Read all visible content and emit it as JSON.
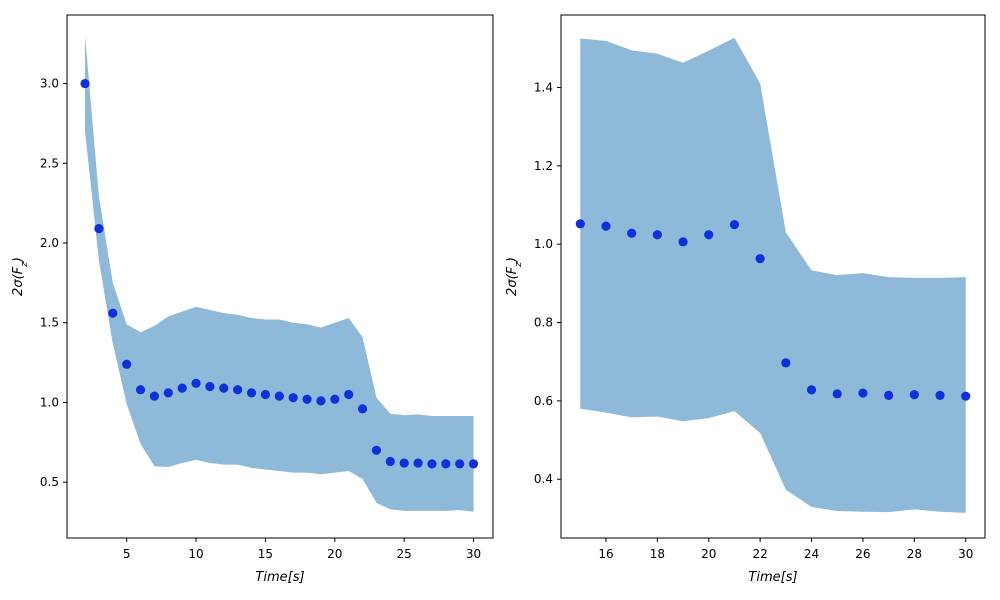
{
  "chart_data": [
    {
      "type": "scatter",
      "xlabel": "Time[s]",
      "ylabel": "2σ(F_z)",
      "xlim": [
        0.7,
        31.4
      ],
      "ylim": [
        0.15,
        3.43
      ],
      "xticks": [
        5,
        10,
        15,
        20,
        25,
        30
      ],
      "xtick_labels": [
        "5",
        "10",
        "15",
        "20",
        "25",
        "30"
      ],
      "yticks": [
        0.5,
        1.0,
        1.5,
        2.0,
        2.5,
        3.0
      ],
      "ytick_labels": [
        "0.5",
        "1.0",
        "1.5",
        "2.0",
        "2.5",
        "3.0"
      ],
      "grid": false,
      "series": [
        {
          "kind": "points",
          "color": "#1030d8",
          "x": [
            2,
            3,
            4,
            5,
            6,
            7,
            8,
            9,
            10,
            11,
            12,
            13,
            14,
            15,
            16,
            17,
            18,
            19,
            20,
            21,
            22,
            23,
            24,
            25,
            26,
            27,
            28,
            29,
            30
          ],
          "y": [
            3.0,
            2.09,
            1.56,
            1.24,
            1.08,
            1.04,
            1.06,
            1.09,
            1.12,
            1.1,
            1.09,
            1.08,
            1.06,
            1.05,
            1.04,
            1.03,
            1.02,
            1.01,
            1.02,
            1.05,
            0.96,
            0.7,
            0.63,
            0.62,
            0.62,
            0.615,
            0.615,
            0.615,
            0.615
          ]
        },
        {
          "kind": "band",
          "color": "#8fb9d8",
          "x": [
            2,
            3,
            4,
            5,
            6,
            7,
            8,
            9,
            10,
            11,
            12,
            13,
            14,
            15,
            16,
            17,
            18,
            19,
            20,
            21,
            22,
            23,
            24,
            25,
            26,
            27,
            28,
            29,
            30
          ],
          "upper": [
            3.3,
            2.29,
            1.75,
            1.49,
            1.44,
            1.48,
            1.54,
            1.57,
            1.6,
            1.58,
            1.56,
            1.55,
            1.53,
            1.52,
            1.52,
            1.5,
            1.49,
            1.47,
            1.5,
            1.53,
            1.41,
            1.03,
            0.93,
            0.92,
            0.925,
            0.915,
            0.915,
            0.915,
            0.915
          ],
          "lower": [
            2.7,
            1.89,
            1.37,
            0.99,
            0.74,
            0.6,
            0.595,
            0.62,
            0.64,
            0.62,
            0.61,
            0.61,
            0.59,
            0.58,
            0.57,
            0.56,
            0.56,
            0.55,
            0.56,
            0.57,
            0.52,
            0.37,
            0.33,
            0.32,
            0.32,
            0.32,
            0.32,
            0.325,
            0.315
          ]
        }
      ]
    },
    {
      "type": "scatter",
      "xlabel": "Time[s]",
      "ylabel": "2σ(F_z)",
      "xlim": [
        14.25,
        30.75
      ],
      "ylim": [
        0.25,
        1.585
      ],
      "xticks": [
        16,
        18,
        20,
        22,
        24,
        26,
        28,
        30
      ],
      "xtick_labels": [
        "16",
        "18",
        "20",
        "22",
        "24",
        "26",
        "28",
        "30"
      ],
      "yticks": [
        0.4,
        0.6,
        0.8,
        1.0,
        1.2,
        1.4
      ],
      "ytick_labels": [
        "0.4",
        "0.6",
        "0.8",
        "1.0",
        "1.2",
        "1.4"
      ],
      "grid": false,
      "series": [
        {
          "kind": "points",
          "color": "#1030d8",
          "x": [
            15,
            16,
            17,
            18,
            19,
            20,
            21,
            22,
            23,
            24,
            25,
            26,
            27,
            28,
            29,
            30
          ],
          "y": [
            1.052,
            1.046,
            1.028,
            1.024,
            1.006,
            1.024,
            1.05,
            0.963,
            0.697,
            0.628,
            0.618,
            0.62,
            0.614,
            0.616,
            0.614,
            0.612
          ]
        },
        {
          "kind": "band",
          "color": "#8fb9d8",
          "x": [
            15,
            16,
            17,
            18,
            19,
            20,
            21,
            22,
            23,
            24,
            25,
            26,
            27,
            28,
            29,
            30
          ],
          "upper": [
            1.525,
            1.519,
            1.495,
            1.486,
            1.463,
            1.494,
            1.527,
            1.41,
            1.03,
            0.933,
            0.921,
            0.926,
            0.916,
            0.914,
            0.914,
            0.916
          ],
          "lower": [
            0.58,
            0.57,
            0.558,
            0.56,
            0.548,
            0.556,
            0.574,
            0.518,
            0.373,
            0.329,
            0.319,
            0.317,
            0.316,
            0.323,
            0.317,
            0.314
          ]
        }
      ]
    }
  ]
}
